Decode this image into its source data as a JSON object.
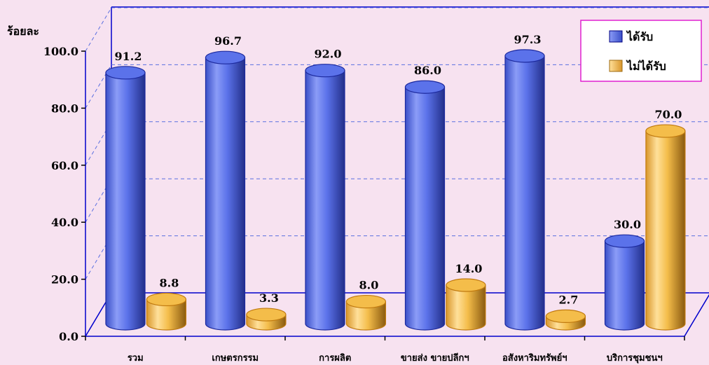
{
  "chart_data": {
    "type": "bar",
    "ylabel": "ร้อยละ",
    "ylim": [
      0,
      100
    ],
    "yticks": [
      "0.0",
      "20.0",
      "40.0",
      "60.0",
      "80.0",
      "100.0"
    ],
    "categories": [
      "รวม",
      "เกษตรกรรม",
      "การผลิต",
      "ขายส่ง ขายปลีกฯ",
      "อสังหาริมทรัพย์ฯ",
      "บริการชุมชนฯ"
    ],
    "series": [
      {
        "name": "ได้รับ",
        "color": "#5b72ea",
        "values": [
          91.2,
          96.7,
          92.0,
          86.0,
          97.3,
          30.0
        ]
      },
      {
        "name": "ไม่ได้รับ",
        "color": "#f4bd4a",
        "values": [
          8.8,
          3.3,
          8.0,
          14.0,
          2.7,
          70.0
        ]
      }
    ],
    "value_labels": [
      [
        "91.2",
        "96.7",
        "92.0",
        "86.0",
        "97.3",
        "30.0"
      ],
      [
        "8.8",
        "3.3",
        "8.0",
        "14.0",
        "2.7",
        "70.0"
      ]
    ],
    "grid": true,
    "legend_position": "top-right",
    "style": "3d-cylinder"
  }
}
